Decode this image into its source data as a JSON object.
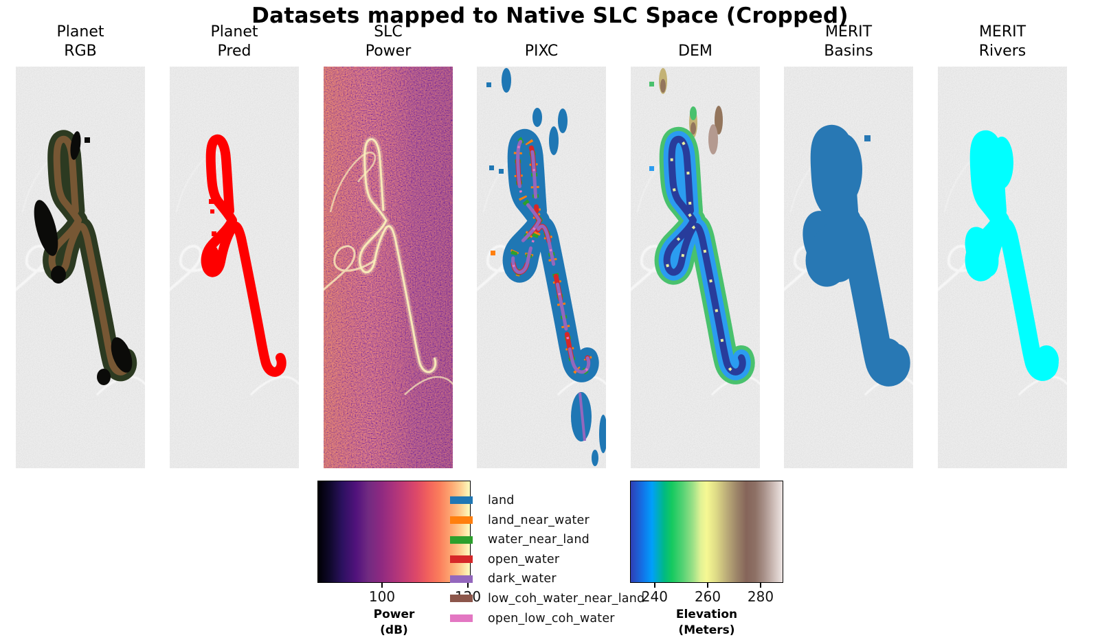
{
  "figure_title": "Datasets mapped to Native SLC Space (Cropped)",
  "panels": [
    {
      "key": "planet_rgb",
      "title": "Planet\nRGB"
    },
    {
      "key": "planet_pred",
      "title": "Planet\nPred"
    },
    {
      "key": "slc_power",
      "title": "SLC\nPower"
    },
    {
      "key": "pixc",
      "title": "PIXC"
    },
    {
      "key": "dem",
      "title": "DEM"
    },
    {
      "key": "merit_basins",
      "title": "MERIT\nBasins"
    },
    {
      "key": "merit_rivers",
      "title": "MERIT\nRivers"
    }
  ],
  "colorbars": {
    "power": {
      "label": "Power\n(dB)",
      "ticks": [
        {
          "text": "100",
          "pos": 0.4215
        },
        {
          "text": "120",
          "pos": 0.982
        }
      ]
    },
    "elevation": {
      "label": "Elevation\n(Meters)",
      "ticks": [
        {
          "text": "240",
          "pos": 0.161
        },
        {
          "text": "260",
          "pos": 0.507
        },
        {
          "text": "280",
          "pos": 0.852
        }
      ]
    }
  },
  "legend": {
    "items": [
      {
        "label": "land",
        "color": "#1f77b4"
      },
      {
        "label": "land_near_water",
        "color": "#ff7f0e"
      },
      {
        "label": "water_near_land",
        "color": "#2ca02c"
      },
      {
        "label": "open_water",
        "color": "#d62728"
      },
      {
        "label": "dark_water",
        "color": "#9467bd"
      },
      {
        "label": "low_coh_water_near_land",
        "color": "#8c564b"
      },
      {
        "label": "open_low_coh_water",
        "color": "#e377c2"
      }
    ]
  },
  "colors": {
    "sar_background": "#d2d2d2",
    "rgb_veg": "#2c3a21",
    "rgb_soil": "#7b5836",
    "rgb_dark": "#0b0b09",
    "pred": "#fe0000",
    "pixc_land": "#1f77b4",
    "pixc_land_near_water": "#ff7f0e",
    "pixc_water_near_land": "#2ca02c",
    "pixc_open_water": "#d62728",
    "pixc_dark_water": "#9467bd",
    "pixc_open_low_coh_water": "#e377c2",
    "dem_low": "#283c9b",
    "dem_mid": "#2b9cf0",
    "dem_fringe": "#49c16d",
    "dem_speck": "#e9efa0",
    "dem_tan": "#c3b275",
    "dem_brown": "#93755c",
    "dem_pink": "#b49a90",
    "basins": "#2878b4",
    "rivers": "#00ffff",
    "slc_base": "#bc4877",
    "slc_trace": "#f9eebb"
  },
  "chart_data": {
    "type": "heatmap",
    "title": "Datasets mapped to Native SLC Space (Cropped)",
    "layout": "7 raster panels in native SLC (radar) geometry over a gray SAR backscatter background; two horizontal colorbars and a categorical legend below",
    "panels": [
      {
        "name": "Planet RGB",
        "overlay": "dark green / brown / black river meander pixels"
      },
      {
        "name": "Planet Pred",
        "overlay": "red water prediction mask"
      },
      {
        "name": "SLC Power",
        "overlay": "full-frame magma-colormap SAR power with bright channel banks"
      },
      {
        "name": "PIXC",
        "overlay": "classified pixel cloud: land, land_near_water, water_near_land, open_water, dark_water stripes"
      },
      {
        "name": "DEM",
        "overlay": "terrain-colormap elevation along river corridor"
      },
      {
        "name": "MERIT Basins",
        "overlay": "solid blue basin water mask"
      },
      {
        "name": "MERIT Rivers",
        "overlay": "cyan river centerline mask"
      }
    ],
    "colorbars": [
      {
        "label": "Power (dB)",
        "colormap": "magma",
        "tick_values": [
          100,
          120
        ],
        "range_estimate": [
          85,
          121
        ]
      },
      {
        "label": "Elevation (Meters)",
        "colormap": "terrain",
        "tick_values": [
          240,
          260,
          280
        ],
        "range_estimate": [
          231,
          289
        ]
      }
    ],
    "legend_classes": [
      "land",
      "land_near_water",
      "water_near_land",
      "open_water",
      "dark_water",
      "low_coh_water_near_land",
      "open_low_coh_water"
    ],
    "legend_position": "bottom-center"
  }
}
